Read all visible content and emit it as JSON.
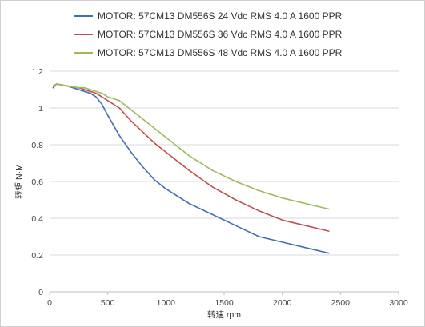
{
  "chart_data": {
    "type": "line",
    "xlabel": "转速 rpm",
    "ylabel": "转矩 N·M",
    "xlim": [
      0,
      3000
    ],
    "ylim": [
      0,
      1.2
    ],
    "xticks": [
      "0",
      "500",
      "1000",
      "1500",
      "2000",
      "2500",
      "3000"
    ],
    "yticks": [
      "0",
      "0.2",
      "0.4",
      "0.6",
      "0.8",
      "1",
      "1.2"
    ],
    "grid": "horizontal",
    "legend_position": "top",
    "series": [
      {
        "name": "MOTOR: 57CM13 DM556S 24 Vdc  RMS 4.0 A  1600 PPR",
        "color": "#3f6fb6",
        "x": [
          30,
          60,
          150,
          250,
          300,
          350,
          400,
          450,
          500,
          600,
          700,
          800,
          900,
          1000,
          1200,
          1400,
          1600,
          1800,
          2000,
          2200,
          2400
        ],
        "y": [
          1.11,
          1.13,
          1.12,
          1.1,
          1.09,
          1.08,
          1.06,
          1.02,
          0.96,
          0.85,
          0.76,
          0.68,
          0.61,
          0.56,
          0.48,
          0.42,
          0.36,
          0.3,
          0.27,
          0.24,
          0.21
        ]
      },
      {
        "name": "MOTOR: 57CM13 DM556S 36 Vdc  RMS 4.0 A  1600 PPR",
        "color": "#c0504d",
        "x": [
          30,
          60,
          150,
          250,
          300,
          350,
          400,
          450,
          500,
          600,
          700,
          800,
          900,
          1000,
          1200,
          1400,
          1600,
          1800,
          2000,
          2200,
          2400
        ],
        "y": [
          1.12,
          1.13,
          1.12,
          1.11,
          1.1,
          1.09,
          1.08,
          1.06,
          1.04,
          1.0,
          0.93,
          0.87,
          0.81,
          0.76,
          0.66,
          0.57,
          0.5,
          0.44,
          0.39,
          0.36,
          0.33
        ]
      },
      {
        "name": "MOTOR: 57CM13 DM556S 48 Vdc  RMS 4.0 A  1600 PPR",
        "color": "#9bbb59",
        "x": [
          30,
          60,
          150,
          250,
          300,
          350,
          400,
          450,
          500,
          550,
          600,
          700,
          800,
          900,
          1000,
          1200,
          1400,
          1600,
          1800,
          2000,
          2200,
          2400
        ],
        "y": [
          1.12,
          1.13,
          1.12,
          1.11,
          1.11,
          1.1,
          1.09,
          1.08,
          1.06,
          1.05,
          1.04,
          0.99,
          0.94,
          0.89,
          0.84,
          0.74,
          0.66,
          0.6,
          0.55,
          0.51,
          0.48,
          0.45
        ]
      }
    ]
  }
}
